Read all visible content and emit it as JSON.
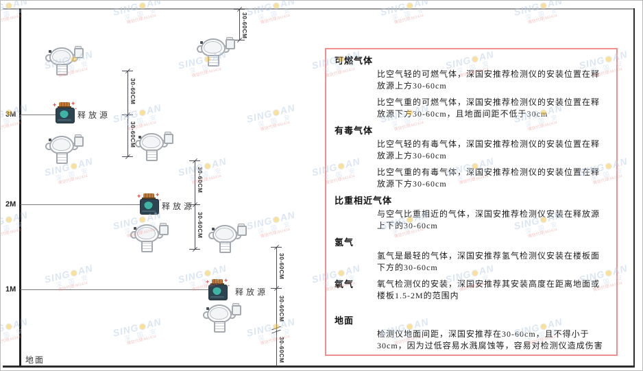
{
  "watermark": {
    "brand_left": "SING",
    "brand_right": "AN",
    "cn": "深 国 安",
    "contact": "微信代理:661434"
  },
  "diagram": {
    "height_labels": {
      "h3": "3M",
      "h2": "2M",
      "h1": "1M"
    },
    "ground_label": "地面",
    "source_label": "释放源",
    "dim_label": "30-60CM"
  },
  "panel": {
    "sections": [
      {
        "heading": "可燃气体",
        "paragraphs": [
          "比空气轻的可燃气体，深国安推荐检测仪的安装位置在释放源上方30-60cm",
          "比空气重的可燃气体，深国安推荐检测仪的安装位置在释放源下方30-60cm，且地面间距不低于30cm"
        ]
      },
      {
        "heading": "有毒气体",
        "paragraphs": [
          "比空气轻的有毒气体，深国安推荐检测仪的安装位置在释放源上方30-60cm",
          "比空气重的有毒气体，深国安推荐检测仪的安装位置在释放源下方30-60cm"
        ]
      },
      {
        "heading": "比重相近气体",
        "paragraphs": [
          "与空气比重相近的气体，深国安推荐检测仪安装在释放源上下的30-60cm"
        ]
      },
      {
        "heading": "氢气",
        "paragraphs": [
          "氢气是最轻的气体，深国安推荐氢气检测仪安装在楼板面下方的30-60cm"
        ]
      },
      {
        "heading": "氧气",
        "paragraphs": [
          "氧气检测仪的安装，深国安推荐其安装高度在距离地面或楼板1.5-2M的范围内"
        ]
      },
      {
        "heading": "地面",
        "paragraphs": [
          "检测仪地面间距，深国安推荐在30-60cm，且不得小于30cm，因为过低容易水溅腐蚀等，容易对检测仪造成伤害"
        ]
      }
    ]
  },
  "colors": {
    "panel_border": "#ef8f8f",
    "source_body": "#2e4551",
    "source_cap": "#c07b3a",
    "source_face_teal": "#3fb3a4",
    "spark_red": "#e34b4b",
    "watermark_blue": "#b9cfe6",
    "structure_dark": "#2c2c2c"
  }
}
